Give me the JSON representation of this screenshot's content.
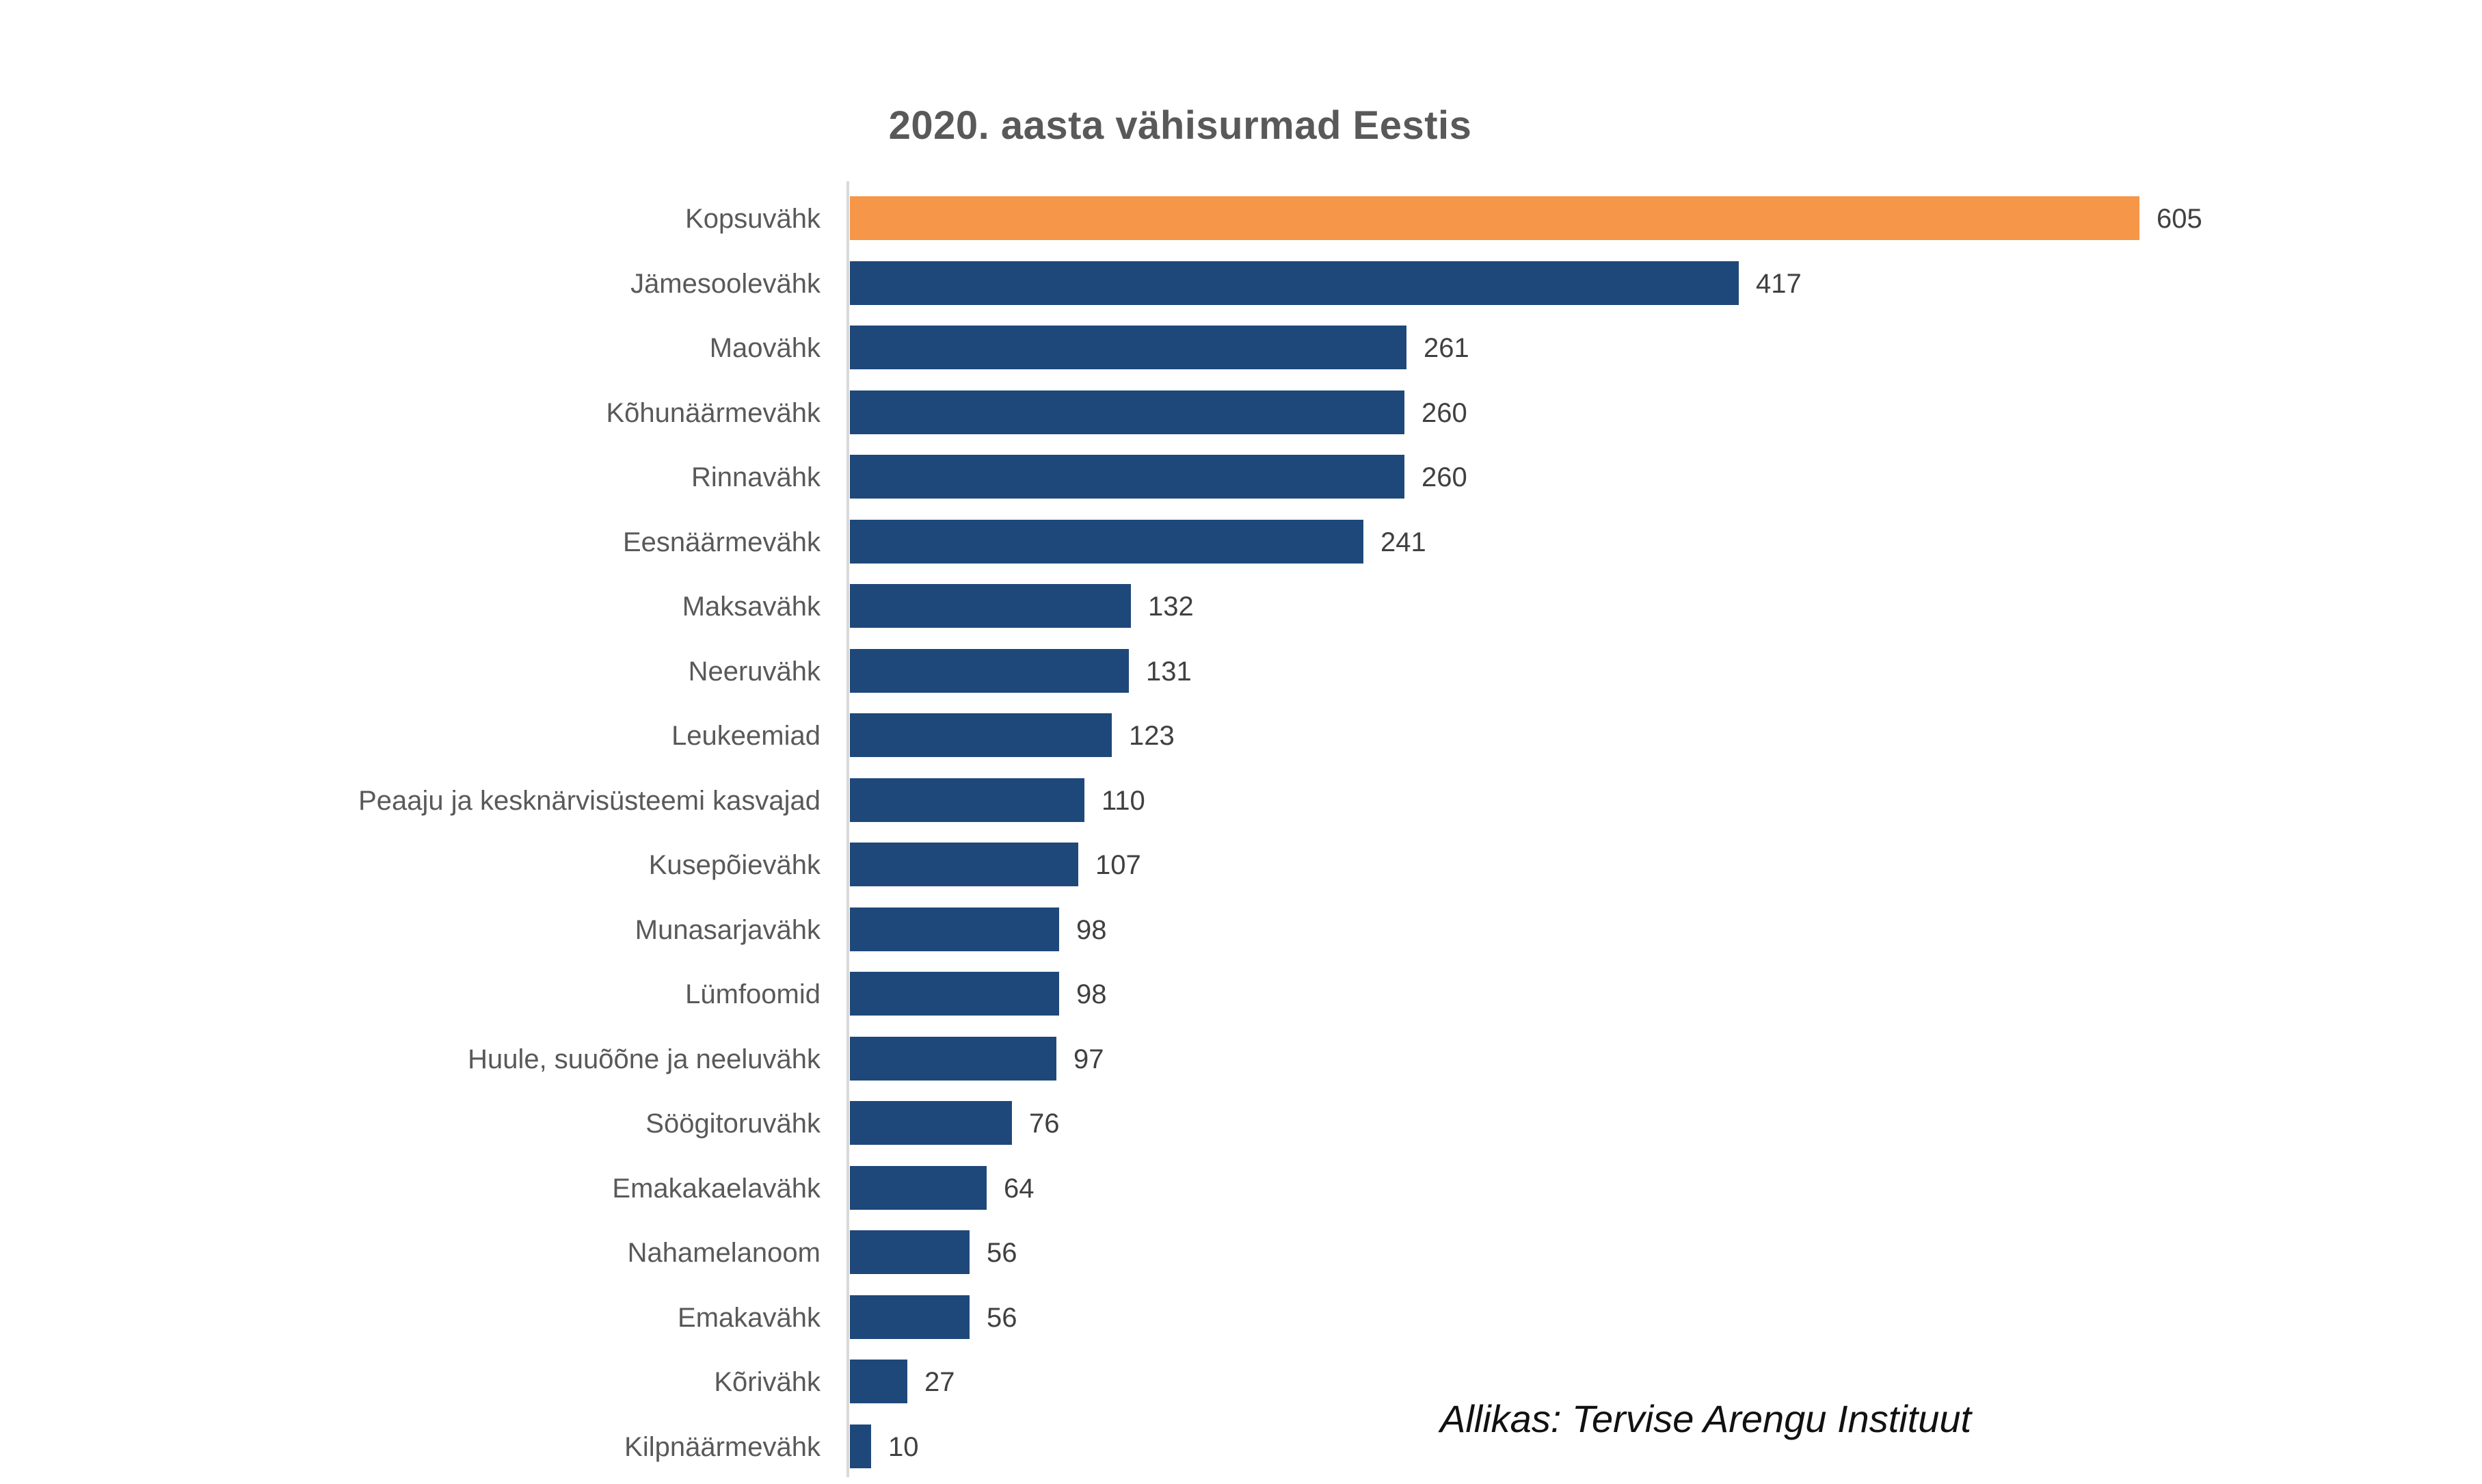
{
  "title": "2020. aasta vähisurmad Eestis",
  "source": "Allikas: Tervise Arengu Instituut",
  "colors": {
    "background": "#FFFFFF",
    "bar": "#1F487A",
    "highlight": "#F69648",
    "title_text": "#595959",
    "category_text": "#595959",
    "value_text": "#404040",
    "axis_line": "#D9D9D9",
    "source_text": "#111111"
  },
  "chart_data": {
    "type": "bar",
    "orientation": "horizontal",
    "title": "2020. aasta vähisurmad Eestis",
    "categories": [
      "Kopsuvähk",
      "Jämesoolevähk",
      "Maovähk",
      "Kõhunäärmevähk",
      "Rinnavähk",
      "Eesnäärmevähk",
      "Maksavähk",
      "Neeruvähk",
      "Leukeemiad",
      "Peaaju ja kesknärvisüsteemi kasvajad",
      "Kusepõievähk",
      "Munasarjavähk",
      "Lümfoomid",
      "Huule, suuõõne ja neeluvähk",
      "Söögitoruvähk",
      "Emakakaelavähk",
      "Nahamelanoom",
      "Emakavähk",
      "Kõrivähk",
      "Kilpnäärmevähk"
    ],
    "values": [
      605,
      417,
      261,
      260,
      260,
      241,
      132,
      131,
      123,
      110,
      107,
      98,
      98,
      97,
      76,
      64,
      56,
      56,
      27,
      10
    ],
    "highlight_index": 0,
    "data_labels": true,
    "xlim": [
      0,
      650
    ],
    "grid": false,
    "legend": "none",
    "source": "Allikas: Tervise Arengu Instituut"
  }
}
